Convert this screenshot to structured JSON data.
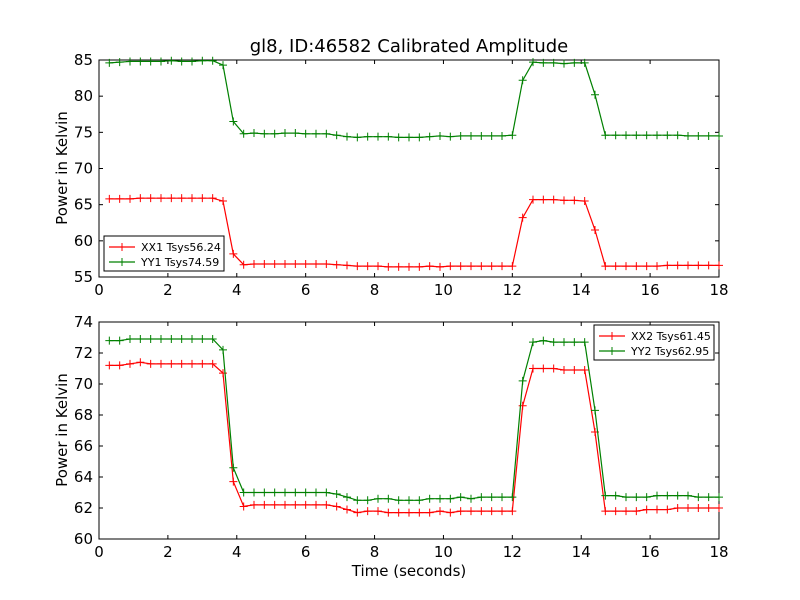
{
  "chart_data": [
    {
      "type": "line",
      "title": "gl8, ID:46582 Calibrated Amplitude",
      "xlabel": "",
      "ylabel": "Power in Kelvin",
      "xlim": [
        0,
        18
      ],
      "ylim": [
        55,
        85
      ],
      "xticks": [
        0,
        2,
        4,
        6,
        8,
        10,
        12,
        14,
        16,
        18
      ],
      "yticks": [
        55,
        60,
        65,
        70,
        75,
        80,
        85
      ],
      "legend": "lower-left",
      "x": [
        0.3,
        0.6,
        0.9,
        1.2,
        1.5,
        1.8,
        2.1,
        2.4,
        2.7,
        3.0,
        3.3,
        3.6,
        3.9,
        4.2,
        4.5,
        4.8,
        5.1,
        5.4,
        5.7,
        6.0,
        6.3,
        6.6,
        6.9,
        7.2,
        7.5,
        7.8,
        8.1,
        8.4,
        8.7,
        9.0,
        9.3,
        9.6,
        9.9,
        10.2,
        10.5,
        10.8,
        11.1,
        11.4,
        11.7,
        12.0,
        12.3,
        12.6,
        12.9,
        13.2,
        13.5,
        13.8,
        14.1,
        14.4,
        14.7,
        15.0,
        15.3,
        15.6,
        15.9,
        16.2,
        16.5,
        16.8,
        17.1,
        17.4,
        17.7,
        18.0
      ],
      "series": [
        {
          "name": "XX1 Tsys56.24",
          "color": "#ff0000",
          "values": [
            65.8,
            65.8,
            65.8,
            65.9,
            65.9,
            65.9,
            65.9,
            65.9,
            65.9,
            65.9,
            65.9,
            65.5,
            58.2,
            56.7,
            56.8,
            56.8,
            56.8,
            56.8,
            56.8,
            56.8,
            56.8,
            56.8,
            56.7,
            56.6,
            56.5,
            56.5,
            56.5,
            56.4,
            56.4,
            56.4,
            56.4,
            56.5,
            56.4,
            56.5,
            56.5,
            56.5,
            56.5,
            56.5,
            56.5,
            56.5,
            63.2,
            65.7,
            65.7,
            65.7,
            65.6,
            65.6,
            65.5,
            61.5,
            56.5,
            56.5,
            56.5,
            56.5,
            56.5,
            56.5,
            56.6,
            56.6,
            56.6,
            56.6,
            56.6,
            56.6
          ]
        },
        {
          "name": "YY1 Tsys74.59",
          "color": "#008000",
          "values": [
            84.6,
            84.7,
            84.8,
            84.8,
            84.8,
            84.8,
            84.9,
            84.8,
            84.8,
            84.9,
            84.9,
            84.3,
            76.5,
            74.8,
            74.9,
            74.8,
            74.8,
            74.9,
            74.9,
            74.8,
            74.8,
            74.8,
            74.6,
            74.4,
            74.3,
            74.4,
            74.4,
            74.4,
            74.3,
            74.3,
            74.3,
            74.4,
            74.5,
            74.4,
            74.5,
            74.5,
            74.5,
            74.5,
            74.5,
            74.6,
            82.2,
            84.7,
            84.6,
            84.6,
            84.5,
            84.6,
            84.6,
            80.2,
            74.6,
            74.6,
            74.6,
            74.6,
            74.6,
            74.6,
            74.6,
            74.6,
            74.5,
            74.5,
            74.5,
            74.5
          ]
        }
      ]
    },
    {
      "type": "line",
      "title": "",
      "xlabel": "Time (seconds)",
      "ylabel": "Power in Kelvin",
      "xlim": [
        0,
        18
      ],
      "ylim": [
        60,
        74
      ],
      "xticks": [
        0,
        2,
        4,
        6,
        8,
        10,
        12,
        14,
        16,
        18
      ],
      "yticks": [
        60,
        62,
        64,
        66,
        68,
        70,
        72,
        74
      ],
      "legend": "top-right",
      "x": [
        0.3,
        0.6,
        0.9,
        1.2,
        1.5,
        1.8,
        2.1,
        2.4,
        2.7,
        3.0,
        3.3,
        3.6,
        3.9,
        4.2,
        4.5,
        4.8,
        5.1,
        5.4,
        5.7,
        6.0,
        6.3,
        6.6,
        6.9,
        7.2,
        7.5,
        7.8,
        8.1,
        8.4,
        8.7,
        9.0,
        9.3,
        9.6,
        9.9,
        10.2,
        10.5,
        10.8,
        11.1,
        11.4,
        11.7,
        12.0,
        12.3,
        12.6,
        12.9,
        13.2,
        13.5,
        13.8,
        14.1,
        14.4,
        14.7,
        15.0,
        15.3,
        15.6,
        15.9,
        16.2,
        16.5,
        16.8,
        17.1,
        17.4,
        17.7,
        18.0
      ],
      "series": [
        {
          "name": "XX2 Tsys61.45",
          "color": "#ff0000",
          "values": [
            71.2,
            71.2,
            71.3,
            71.4,
            71.3,
            71.3,
            71.3,
            71.3,
            71.3,
            71.3,
            71.3,
            70.7,
            63.7,
            62.1,
            62.2,
            62.2,
            62.2,
            62.2,
            62.2,
            62.2,
            62.2,
            62.2,
            62.1,
            61.9,
            61.7,
            61.8,
            61.8,
            61.7,
            61.7,
            61.7,
            61.7,
            61.7,
            61.8,
            61.7,
            61.8,
            61.8,
            61.8,
            61.8,
            61.8,
            61.8,
            68.6,
            71.0,
            71.0,
            71.0,
            70.9,
            70.9,
            70.9,
            66.9,
            61.8,
            61.8,
            61.8,
            61.8,
            61.9,
            61.9,
            61.9,
            62.0,
            62.0,
            62.0,
            62.0,
            62.0
          ]
        },
        {
          "name": "YY2 Tsys62.95",
          "color": "#008000",
          "values": [
            72.8,
            72.8,
            72.9,
            72.9,
            72.9,
            72.9,
            72.9,
            72.9,
            72.9,
            72.9,
            72.9,
            72.2,
            64.6,
            63.0,
            63.0,
            63.0,
            63.0,
            63.0,
            63.0,
            63.0,
            63.0,
            63.0,
            62.9,
            62.7,
            62.5,
            62.5,
            62.6,
            62.6,
            62.5,
            62.5,
            62.5,
            62.6,
            62.6,
            62.6,
            62.7,
            62.6,
            62.7,
            62.7,
            62.7,
            62.7,
            70.2,
            72.7,
            72.8,
            72.7,
            72.7,
            72.7,
            72.7,
            68.3,
            62.8,
            62.8,
            62.7,
            62.7,
            62.7,
            62.8,
            62.8,
            62.8,
            62.8,
            62.7,
            62.7,
            62.7
          ]
        }
      ]
    }
  ]
}
